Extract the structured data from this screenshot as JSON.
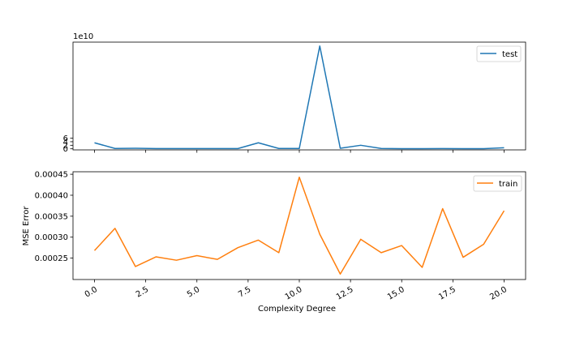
{
  "chart_data": [
    {
      "type": "line",
      "panel": "top",
      "scale_label": "1e10",
      "x": [
        0,
        1,
        2,
        3,
        4,
        5,
        6,
        7,
        8,
        9,
        10,
        11,
        12,
        13,
        14,
        15,
        16,
        17,
        18,
        19,
        20
      ],
      "series": [
        {
          "name": "test",
          "color": "#1f77b4",
          "values": [
            3.4,
            0.2,
            0.3,
            0.15,
            0.15,
            0.15,
            0.15,
            0.15,
            3.4,
            0.2,
            0.2,
            58.0,
            0.3,
            2.0,
            0.2,
            0.1,
            0.1,
            0.15,
            0.1,
            0.1,
            0.6
          ]
        }
      ],
      "ylim": [
        -0.6,
        60.2
      ],
      "yticks": [
        0,
        2,
        4,
        6
      ],
      "ytick_labels": [
        "0",
        "2",
        "4",
        "6"
      ],
      "xlim": [
        -1.05,
        21.05
      ],
      "xticks": [
        0,
        2.5,
        5,
        7.5,
        10,
        12.5,
        15,
        17.5,
        20
      ],
      "show_xtick_labels": false,
      "xlabel": "",
      "ylabel": "",
      "legend": "top-right",
      "grid": false
    },
    {
      "type": "line",
      "panel": "bottom",
      "x": [
        0,
        1,
        2,
        3,
        4,
        5,
        6,
        7,
        8,
        9,
        10,
        11,
        12,
        13,
        14,
        15,
        16,
        17,
        18,
        19,
        20
      ],
      "series": [
        {
          "name": "train",
          "color": "#ff7f0e",
          "values": [
            0.000268,
            0.000321,
            0.00023,
            0.000253,
            0.000245,
            0.000256,
            0.000247,
            0.000275,
            0.000293,
            0.000263,
            0.000443,
            0.000307,
            0.000212,
            0.000295,
            0.000263,
            0.00028,
            0.000228,
            0.000368,
            0.000252,
            0.000283,
            0.000363
          ]
        }
      ],
      "ylim": [
        0.000199,
        0.000456
      ],
      "yticks": [
        0.00025,
        0.0003,
        0.00035,
        0.0004,
        0.00045
      ],
      "ytick_labels": [
        "0.00025",
        "0.00030",
        "0.00035",
        "0.00040",
        "0.00045"
      ],
      "xlim": [
        -1.05,
        21.05
      ],
      "xticks": [
        0,
        2.5,
        5,
        7.5,
        10,
        12.5,
        15,
        17.5,
        20
      ],
      "xtick_labels": [
        "0.0",
        "2.5",
        "5.0",
        "7.5",
        "10.0",
        "12.5",
        "15.0",
        "17.5",
        "20.0"
      ],
      "xlabel": "Complexity Degree",
      "ylabel": "MSE Error",
      "legend": "top-right",
      "grid": false
    }
  ]
}
